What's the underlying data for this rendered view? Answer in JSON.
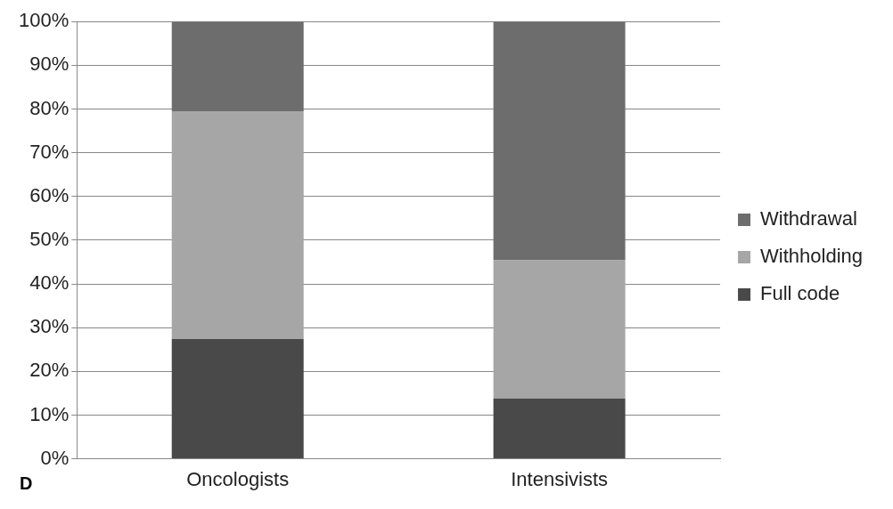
{
  "chart_data": {
    "type": "bar",
    "stacked": true,
    "categories": [
      "Oncologists",
      "Intensivists"
    ],
    "series": [
      {
        "name": "Full code",
        "color": "#494949",
        "values": [
          27.4,
          13.8
        ]
      },
      {
        "name": "Withholding",
        "color": "#a6a6a6",
        "values": [
          52.1,
          31.6
        ]
      },
      {
        "name": "Withdrawal",
        "color": "#6d6d6d",
        "values": [
          20.5,
          54.6
        ]
      }
    ],
    "ylim": [
      0,
      100
    ],
    "yticks": [
      {
        "value": 0,
        "label": "0%"
      },
      {
        "value": 10,
        "label": "10%"
      },
      {
        "value": 20,
        "label": "20%"
      },
      {
        "value": 30,
        "label": "30%"
      },
      {
        "value": 40,
        "label": "40%"
      },
      {
        "value": 50,
        "label": "50%"
      },
      {
        "value": 60,
        "label": "60%"
      },
      {
        "value": 70,
        "label": "70%"
      },
      {
        "value": 80,
        "label": "80%"
      },
      {
        "value": 90,
        "label": "90%"
      },
      {
        "value": 100,
        "label": "100%"
      }
    ],
    "grid": "y",
    "legend": "right",
    "annotations": [
      "D"
    ]
  }
}
